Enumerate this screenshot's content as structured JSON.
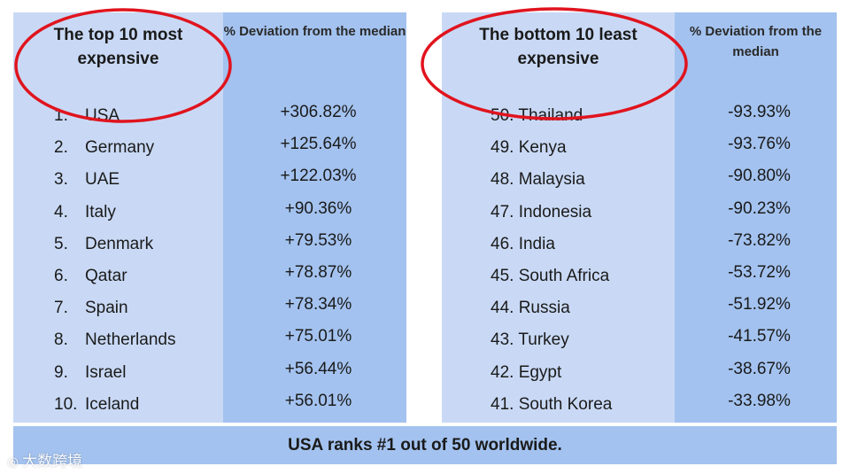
{
  "left_table": {
    "header_name": "The top 10 most expensive",
    "header_deviation": "% Deviation from the median",
    "rows": [
      {
        "rank": "1.",
        "country": "USA",
        "deviation": "+306.82%"
      },
      {
        "rank": "2.",
        "country": "Germany",
        "deviation": "+125.64%"
      },
      {
        "rank": "3.",
        "country": "UAE",
        "deviation": "+122.03%"
      },
      {
        "rank": "4.",
        "country": "Italy",
        "deviation": "+90.36%"
      },
      {
        "rank": "5.",
        "country": "Denmark",
        "deviation": "+79.53%"
      },
      {
        "rank": "6.",
        "country": "Qatar",
        "deviation": "+78.87%"
      },
      {
        "rank": "7.",
        "country": "Spain",
        "deviation": "+78.34%"
      },
      {
        "rank": "8.",
        "country": "Netherlands",
        "deviation": "+75.01%"
      },
      {
        "rank": "9.",
        "country": "Israel",
        "deviation": "+56.44%"
      },
      {
        "rank": "10.",
        "country": "Iceland",
        "deviation": "+56.01%"
      }
    ]
  },
  "right_table": {
    "header_name": "The bottom 10 least expensive",
    "header_deviation": "% Deviation from the median",
    "rows": [
      {
        "label": "50. Thailand",
        "deviation": "-93.93%"
      },
      {
        "label": "49. Kenya",
        "deviation": "-93.76%"
      },
      {
        "label": "48. Malaysia",
        "deviation": "-90.80%"
      },
      {
        "label": "47. Indonesia",
        "deviation": "-90.23%"
      },
      {
        "label": "46. India",
        "deviation": "-73.82%"
      },
      {
        "label": "45. South Africa",
        "deviation": "-53.72%"
      },
      {
        "label": "44. Russia",
        "deviation": "-51.92%"
      },
      {
        "label": "43. Turkey",
        "deviation": "-41.57%"
      },
      {
        "label": "42. Egypt",
        "deviation": "-38.67%"
      },
      {
        "label": "41. South Korea",
        "deviation": "-33.98%"
      }
    ]
  },
  "footer": {
    "text": "USA ranks #1 out of 50 worldwide."
  },
  "watermark": {
    "text": "大数跨境",
    "icon": "camera-logo-icon"
  },
  "colors": {
    "name_column": "#c9d9f5",
    "deviation_column": "#a3c2ef",
    "highlight_circle": "#e0141e"
  }
}
